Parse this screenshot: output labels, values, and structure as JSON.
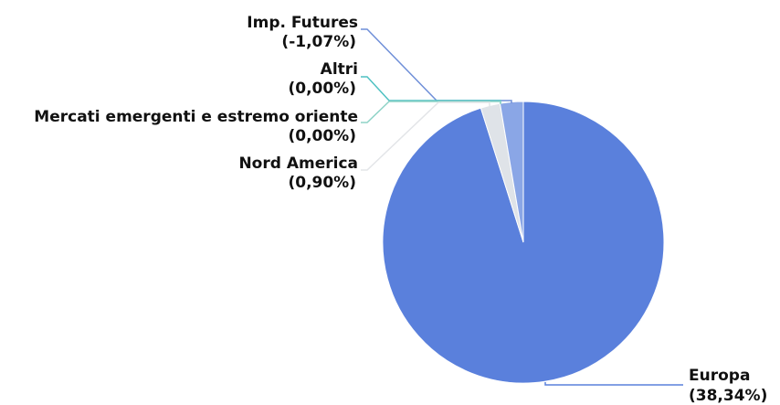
{
  "chart_data": {
    "type": "pie",
    "title": "",
    "slices": [
      {
        "name": "Europa",
        "label": "Europa",
        "value_label": "(38,34%)",
        "value": 38.34,
        "color": "#5a80dc"
      },
      {
        "name": "Nord America",
        "label": "Nord America",
        "value_label": "(0,90%)",
        "value": 0.9,
        "color": "#dfe3e8"
      },
      {
        "name": "Mercati emergenti e estremo oriente",
        "label": "Mercati emergenti e estremo oriente",
        "value_label": "(0,00%)",
        "value": 0.0,
        "color": "#8fd3c7"
      },
      {
        "name": "Altri",
        "label": "Altri",
        "value_label": "(0,00%)",
        "value": 0.0,
        "color": "#4fc1c2"
      },
      {
        "name": "Imp. Futures",
        "label": "Imp. Futures",
        "value_label": "(-1,07%)",
        "value": -1.07,
        "color": "#8aa6e6"
      }
    ]
  }
}
